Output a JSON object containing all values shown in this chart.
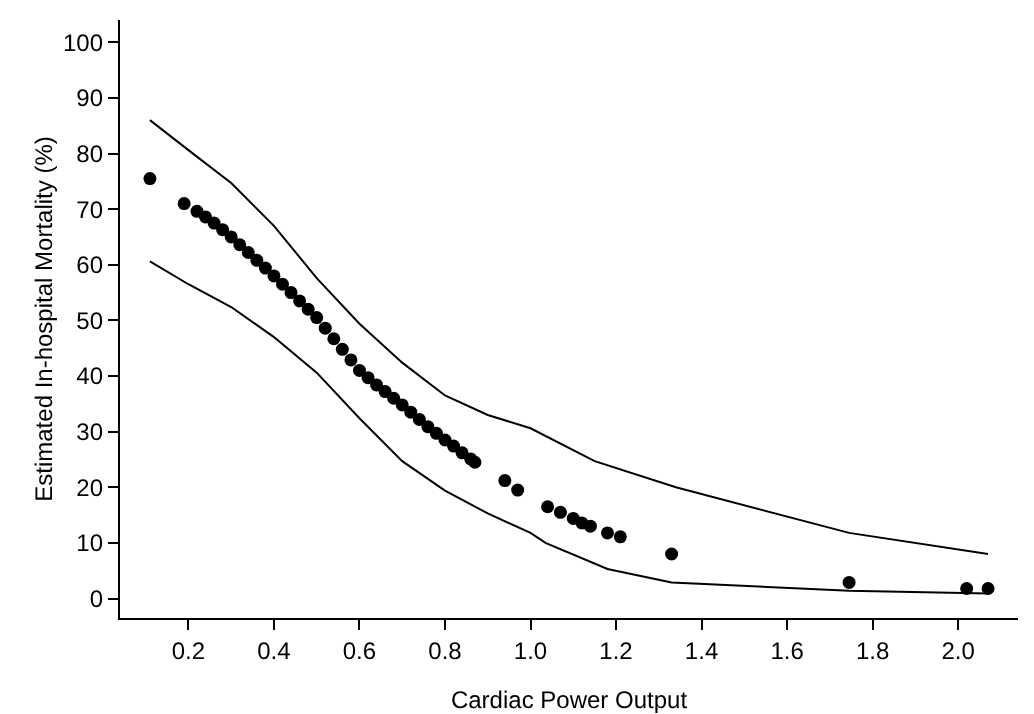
{
  "chart_data": {
    "type": "scatter",
    "xlabel": "Cardiac Power Output",
    "ylabel": "Estimated In-hospital Mortality (%)",
    "xlim": [
      0.04,
      2.14
    ],
    "xticks": [
      {
        "value": 0.2,
        "label": "0.2"
      },
      {
        "value": 0.4,
        "label": "0.4"
      },
      {
        "value": 0.6,
        "label": "0.6"
      },
      {
        "value": 0.8,
        "label": "0.8"
      },
      {
        "value": 1,
        "label": "1.0"
      },
      {
        "value": 1.2,
        "label": "1.2"
      },
      {
        "value": 1.4,
        "label": "1.4"
      },
      {
        "value": 1.6,
        "label": "1.6"
      },
      {
        "value": 1.8,
        "label": "1.8"
      },
      {
        "value": 2,
        "label": "2.0"
      }
    ],
    "ylim": [
      -3.5,
      104
    ],
    "yticks": [
      0,
      10,
      20,
      30,
      40,
      50,
      60,
      70,
      80,
      90,
      100
    ],
    "grid": false,
    "series": [
      {
        "marker": "circle",
        "color": "#000000",
        "x": [
          0.11,
          0.19,
          0.22,
          0.24,
          0.26,
          0.28,
          0.3,
          0.32,
          0.34,
          0.36,
          0.38,
          0.4,
          0.42,
          0.44,
          0.46,
          0.48,
          0.5,
          0.52,
          0.54,
          0.56,
          0.58,
          0.6,
          0.62,
          0.64,
          0.66,
          0.68,
          0.7,
          0.72,
          0.74,
          0.76,
          0.78,
          0.8,
          0.82,
          0.84,
          0.86,
          0.87,
          0.94,
          0.97,
          1.04,
          1.07,
          1.1,
          1.12,
          1.14,
          1.18,
          1.21,
          1.33,
          1.745,
          2.02,
          2.07
        ],
        "values": [
          75.5,
          71,
          69.6,
          68.6,
          67.5,
          66.3,
          65,
          63.6,
          62.2,
          60.8,
          59.4,
          58,
          56.5,
          55,
          53.5,
          52,
          50.5,
          48.6,
          46.7,
          44.8,
          42.9,
          41,
          39.7,
          38.4,
          37.2,
          36,
          34.8,
          33.5,
          32.2,
          30.9,
          29.7,
          28.5,
          27.4,
          26.2,
          25.1,
          24.5,
          21.2,
          19.5,
          16.5,
          15.5,
          14.4,
          13.6,
          13,
          11.8,
          11.1,
          8,
          2.9,
          1.8,
          1.8
        ]
      },
      {
        "type": "line",
        "marker": "none",
        "line_style": "solid",
        "color": "#000000",
        "x": [
          0.11,
          0.2,
          0.3,
          0.4,
          0.5,
          0.6,
          0.7,
          0.8,
          0.9,
          1.0,
          1.15,
          1.34,
          1.745,
          2.07
        ],
        "values": [
          86,
          80.6,
          74.7,
          67,
          57.6,
          49.4,
          42.4,
          36.5,
          33,
          30.6,
          24.7,
          20,
          11.8,
          8
        ]
      },
      {
        "type": "line",
        "marker": "none",
        "line_style": "solid",
        "color": "#000000",
        "x": [
          0.11,
          0.2,
          0.3,
          0.4,
          0.5,
          0.6,
          0.7,
          0.8,
          0.9,
          1.0,
          1.035,
          1.18,
          1.33,
          1.745,
          2.07
        ],
        "values": [
          60.6,
          56.5,
          52.4,
          47,
          40.6,
          32.4,
          24.7,
          19.4,
          15.3,
          11.8,
          10,
          5.3,
          2.9,
          1.4,
          0.9
        ]
      }
    ]
  }
}
